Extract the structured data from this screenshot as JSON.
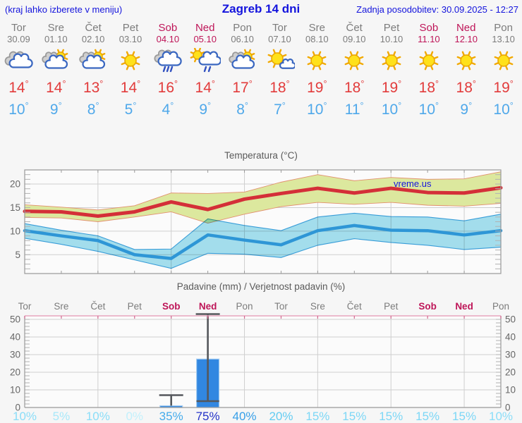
{
  "header": {
    "left_note": "(kraj lahko izberete v meniju)",
    "title": "Zagreb 14 dni",
    "updated": "Zadnja posodobitev: 30.09.2025 - 12:27"
  },
  "strip": {
    "degree_symbol": "°",
    "days": [
      {
        "name": "Tor",
        "date": "30.09",
        "weekend": false,
        "icon": "cloudy",
        "tmax": 14,
        "tmin": 10
      },
      {
        "name": "Sre",
        "date": "01.10",
        "weekend": false,
        "icon": "partly-cloudy",
        "tmax": 14,
        "tmin": 9
      },
      {
        "name": "Čet",
        "date": "02.10",
        "weekend": false,
        "icon": "partly-cloudy",
        "tmax": 13,
        "tmin": 8
      },
      {
        "name": "Pet",
        "date": "03.10",
        "weekend": false,
        "icon": "sunny",
        "tmax": 14,
        "tmin": 5
      },
      {
        "name": "Sob",
        "date": "04.10",
        "weekend": true,
        "icon": "rain",
        "tmax": 16,
        "tmin": 4
      },
      {
        "name": "Ned",
        "date": "05.10",
        "weekend": true,
        "icon": "sun-rain",
        "tmax": 14,
        "tmin": 9
      },
      {
        "name": "Pon",
        "date": "06.10",
        "weekend": false,
        "icon": "partly-cloudy",
        "tmax": 17,
        "tmin": 8
      },
      {
        "name": "Tor",
        "date": "07.10",
        "weekend": false,
        "icon": "mostly-sunny",
        "tmax": 18,
        "tmin": 7
      },
      {
        "name": "Sre",
        "date": "08.10",
        "weekend": false,
        "icon": "sunny",
        "tmax": 19,
        "tmin": 10
      },
      {
        "name": "Čet",
        "date": "09.10",
        "weekend": false,
        "icon": "sunny",
        "tmax": 18,
        "tmin": 11
      },
      {
        "name": "Pet",
        "date": "10.10",
        "weekend": false,
        "icon": "sunny",
        "tmax": 19,
        "tmin": 10
      },
      {
        "name": "Sob",
        "date": "11.10",
        "weekend": true,
        "icon": "sunny",
        "tmax": 18,
        "tmin": 10
      },
      {
        "name": "Ned",
        "date": "12.10",
        "weekend": true,
        "icon": "sunny",
        "tmax": 18,
        "tmin": 9
      },
      {
        "name": "Pon",
        "date": "13.10",
        "weekend": false,
        "icon": "sunny",
        "tmax": 19,
        "tmin": 10
      }
    ]
  },
  "temp_chart": {
    "type": "line",
    "title": "Temperatura (°C)",
    "watermark": "vreme.us",
    "categories": [
      "Tor",
      "Sre",
      "Čet",
      "Pet",
      "Sob",
      "Ned",
      "Pon",
      "Tor",
      "Sre",
      "Čet",
      "Pet",
      "Sob",
      "Ned",
      "Pon"
    ],
    "series": [
      {
        "name": "max",
        "values": [
          14.2,
          14.1,
          13.2,
          14.1,
          16.2,
          14.6,
          16.8,
          18.0,
          19.1,
          18.1,
          19.1,
          18.2,
          18.1,
          19.2
        ]
      },
      {
        "name": "max_high",
        "values": [
          15.6,
          15.1,
          14.5,
          15.4,
          18.1,
          18.0,
          18.3,
          20.4,
          22.0,
          20.7,
          21.4,
          21.0,
          21.1,
          22.6
        ]
      },
      {
        "name": "max_low",
        "values": [
          12.9,
          12.8,
          12.0,
          13.0,
          14.1,
          11.7,
          13.6,
          15.2,
          16.1,
          15.7,
          16.1,
          15.5,
          15.3,
          15.9
        ]
      },
      {
        "name": "min",
        "values": [
          10.1,
          9.0,
          8.0,
          5.0,
          4.2,
          9.2,
          8.1,
          7.1,
          10.1,
          11.2,
          10.2,
          10.1,
          9.2,
          10.1
        ]
      },
      {
        "name": "min_high",
        "values": [
          11.6,
          10.2,
          9.0,
          6.1,
          6.2,
          12.6,
          11.2,
          10.1,
          13.0,
          13.8,
          13.1,
          13.0,
          12.2,
          13.6
        ]
      },
      {
        "name": "min_low",
        "values": [
          8.5,
          7.2,
          5.7,
          3.9,
          2.1,
          5.3,
          5.1,
          4.4,
          7.0,
          8.4,
          7.6,
          7.0,
          6.1,
          6.6
        ]
      }
    ],
    "ylim": [
      1,
      23
    ],
    "yticks": [
      5,
      10,
      15,
      20
    ],
    "grid_day_indexes": [
      2,
      4,
      6,
      8,
      10,
      12
    ]
  },
  "precip_chart": {
    "type": "bar",
    "title": "Padavine (mm) / Verjetnost padavin (%)",
    "categories": [
      "Tor",
      "Sre",
      "Čet",
      "Pet",
      "Sob",
      "Ned",
      "Pon",
      "Tor",
      "Sre",
      "Čet",
      "Pet",
      "Sob",
      "Ned",
      "Pon"
    ],
    "values": [
      0,
      0,
      0,
      0,
      1,
      27.5,
      0,
      0,
      0,
      0,
      0,
      0,
      0,
      0
    ],
    "whisker_low": [
      null,
      null,
      null,
      null,
      null,
      3.6,
      null,
      null,
      null,
      null,
      null,
      null,
      null,
      null
    ],
    "whisker_high": [
      null,
      null,
      null,
      null,
      7,
      53,
      null,
      null,
      null,
      null,
      null,
      null,
      null,
      null
    ],
    "probabilities": [
      "10%",
      "5%",
      "10%",
      "0%",
      "35%",
      "75%",
      "40%",
      "20%",
      "15%",
      "15%",
      "15%",
      "15%",
      "15%",
      "10%"
    ],
    "prob_colors": [
      "#8addf8",
      "#a8e8fa",
      "#8addf8",
      "#c2f0fc",
      "#45abeb",
      "#2433c8",
      "#379fe8",
      "#63ccf2",
      "#7cd7f6",
      "#7cd7f6",
      "#7cd7f6",
      "#7cd7f6",
      "#7cd7f6",
      "#8addf8"
    ],
    "ylim": [
      0,
      52
    ],
    "yticks": [
      0,
      10,
      20,
      30,
      40,
      50
    ],
    "grid_day_indexes": [
      2,
      4,
      6,
      8,
      10,
      12
    ]
  },
  "colors": {
    "header_blue": "#1414dd",
    "weekday_gray": "#7c7c7c",
    "weekend_red": "#be1558",
    "tmax_red": "#e23b3b",
    "tmin_blue": "#4fa8ea",
    "chart_title_gray": "#5a5a5a",
    "plot_bg": "#fbfbfb",
    "grid": "#cfcfcf",
    "frame": "#9a9a9a",
    "minor_tick": "#b2b2b2",
    "axis_label": "#666666",
    "band_green": "#dce89e",
    "band_green_edge": "#e2906e",
    "line_red": "#d42f38",
    "band_blue": "#a6e1f0",
    "band_blue_edge": "#3aa0dc",
    "line_blue": "#2e96d6",
    "bar_fill": "#3187e1",
    "bar_edge": "#a9cff2",
    "whisker": "#55585c",
    "precip_top_axis": "#e7a6be",
    "precip_top_tick": "#d2688f"
  }
}
